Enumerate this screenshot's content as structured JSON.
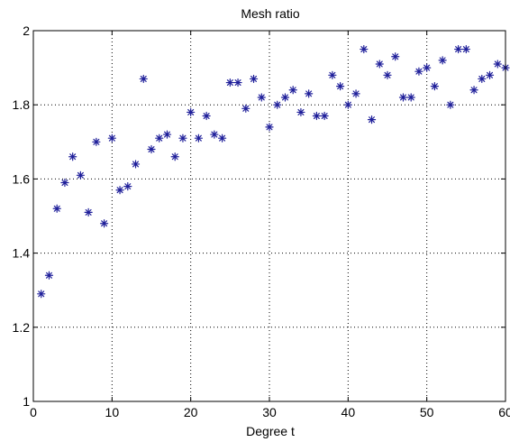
{
  "chart_data": {
    "type": "scatter",
    "title": "Mesh ratio",
    "xlabel": "Degree t",
    "ylabel": "",
    "xlim": [
      0,
      60
    ],
    "ylim": [
      1,
      2
    ],
    "xticks": [
      0,
      10,
      20,
      30,
      40,
      50,
      60
    ],
    "yticks": [
      1,
      1.2,
      1.4,
      1.6,
      1.8,
      2
    ],
    "xtick_labels": [
      "0",
      "10",
      "20",
      "30",
      "40",
      "50",
      "60"
    ],
    "ytick_labels": [
      "1",
      "1.2",
      "1.4",
      "1.6",
      "1.8",
      "2"
    ],
    "grid": true,
    "marker": "asterisk",
    "marker_color": "#1f1f9a",
    "series": [
      {
        "x": [
          1,
          2,
          3,
          4,
          5,
          6,
          7,
          8,
          9,
          10,
          11,
          12,
          13,
          14,
          15,
          16,
          17,
          18,
          19,
          20,
          21,
          22,
          23,
          24,
          25,
          26,
          27,
          28,
          29,
          30,
          31,
          32,
          33,
          34,
          35,
          36,
          37,
          38,
          39,
          40,
          41,
          42,
          43,
          44,
          45,
          46,
          47,
          48,
          49,
          50,
          51,
          52,
          53,
          54,
          55,
          56,
          57,
          58,
          59,
          60
        ],
        "y": [
          1.29,
          1.34,
          1.52,
          1.59,
          1.66,
          1.61,
          1.51,
          1.7,
          1.48,
          1.71,
          1.57,
          1.58,
          1.64,
          1.87,
          1.68,
          1.71,
          1.72,
          1.66,
          1.71,
          1.78,
          1.71,
          1.77,
          1.72,
          1.71,
          1.86,
          1.86,
          1.79,
          1.87,
          1.82,
          1.74,
          1.8,
          1.82,
          1.84,
          1.78,
          1.83,
          1.77,
          1.77,
          1.88,
          1.85,
          1.8,
          1.83,
          1.95,
          1.76,
          1.91,
          1.88,
          1.93,
          1.82,
          1.82,
          1.89,
          1.9,
          1.85,
          1.92,
          1.8,
          1.95,
          1.95,
          1.84,
          1.87,
          1.88,
          1.91,
          1.9
        ]
      }
    ]
  }
}
